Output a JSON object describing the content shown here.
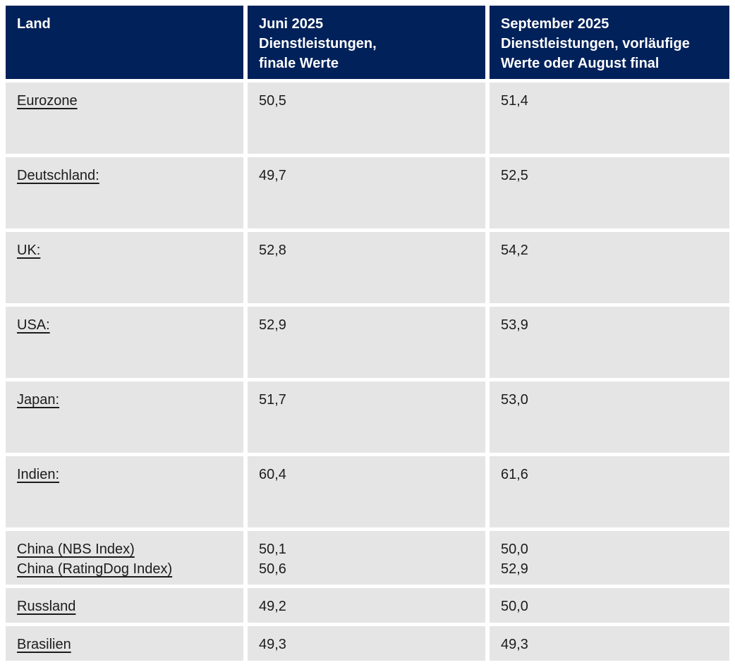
{
  "header": {
    "col1": "Land",
    "col2": "Juni 2025\nDienstleistungen,\nfinale Werte",
    "col3": "September 2025\nDienstleistungen, vorläufige\nWerte oder August final"
  },
  "colors": {
    "header_background": "#01215a",
    "header_text": "#ffffff",
    "row_background": "#e5e5e5",
    "body_text": "#1c1c1c"
  },
  "chart_data": {
    "type": "table",
    "title": "",
    "columns": [
      "Land",
      "Juni 2025 Dienstleistungen, finale Werte",
      "September 2025 Dienstleistungen, vorläufige Werte oder August final"
    ],
    "rows": [
      [
        "Eurozone",
        "50,5",
        "51,4"
      ],
      [
        "Deutschland:",
        "49,7",
        "52,5"
      ],
      [
        "UK:",
        "52,8",
        "54,2"
      ],
      [
        "USA:",
        "52,9",
        "53,9"
      ],
      [
        "Japan:",
        "51,7",
        "53,0"
      ],
      [
        "Indien:",
        "60,4",
        "61,6"
      ],
      [
        "China (NBS Index)",
        "50,1",
        "50,0"
      ],
      [
        "China (RatingDog Index)",
        "50,6",
        "52,9"
      ],
      [
        "Russland",
        "49,2",
        "50,0"
      ],
      [
        "Brasilien",
        "49,3",
        "49,3"
      ]
    ]
  }
}
